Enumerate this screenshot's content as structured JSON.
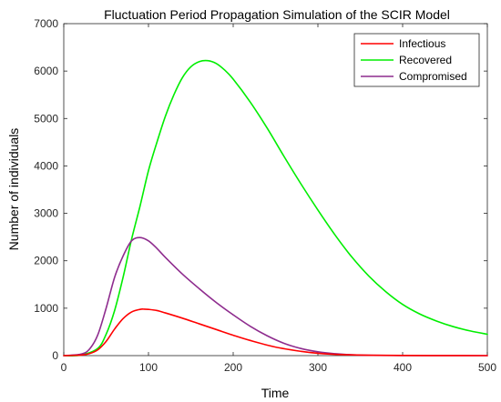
{
  "chart_data": {
    "type": "line",
    "title": "Fluctuation Period Propagation Simulation of the SCIR Model",
    "xlabel": "Time",
    "ylabel": "Number of individuals",
    "xlim": [
      0,
      500
    ],
    "ylim": [
      0,
      7000
    ],
    "xticks": [
      "0",
      "100",
      "200",
      "300",
      "400",
      "500"
    ],
    "yticks": [
      "0",
      "1000",
      "2000",
      "3000",
      "4000",
      "5000",
      "6000",
      "7000"
    ],
    "grid": false,
    "legend_position": "top-right",
    "series": [
      {
        "name": "Infectious",
        "color": "#ff0000",
        "x": [
          0,
          20,
          30,
          40,
          50,
          60,
          70,
          80,
          90,
          95,
          100,
          110,
          120,
          140,
          160,
          180,
          200,
          220,
          250,
          280,
          300,
          330,
          360,
          400,
          450,
          500
        ],
        "y": [
          0,
          10,
          40,
          120,
          300,
          560,
          780,
          920,
          975,
          980,
          975,
          950,
          900,
          790,
          670,
          550,
          430,
          320,
          180,
          90,
          50,
          20,
          8,
          3,
          1,
          0
        ]
      },
      {
        "name": "Recovered",
        "color": "#00ee00",
        "x": [
          0,
          20,
          40,
          50,
          60,
          70,
          80,
          90,
          100,
          110,
          120,
          130,
          140,
          150,
          160,
          170,
          180,
          190,
          200,
          220,
          240,
          260,
          280,
          300,
          320,
          340,
          360,
          380,
          400,
          420,
          440,
          460,
          480,
          500
        ],
        "y": [
          0,
          10,
          150,
          450,
          950,
          1650,
          2450,
          3150,
          3900,
          4500,
          5050,
          5500,
          5860,
          6090,
          6200,
          6220,
          6160,
          6020,
          5830,
          5350,
          4800,
          4200,
          3620,
          3070,
          2550,
          2080,
          1680,
          1350,
          1080,
          880,
          730,
          610,
          520,
          450
        ]
      },
      {
        "name": "Compromised",
        "color": "#8e2c8e",
        "x": [
          0,
          20,
          30,
          40,
          50,
          60,
          70,
          80,
          90,
          100,
          110,
          120,
          140,
          160,
          180,
          200,
          220,
          240,
          260,
          280,
          300,
          320,
          350,
          400,
          450,
          500
        ],
        "y": [
          0,
          30,
          130,
          430,
          1000,
          1650,
          2100,
          2420,
          2490,
          2420,
          2260,
          2070,
          1720,
          1410,
          1120,
          860,
          620,
          420,
          260,
          150,
          80,
          40,
          10,
          2,
          0,
          0
        ]
      }
    ]
  }
}
